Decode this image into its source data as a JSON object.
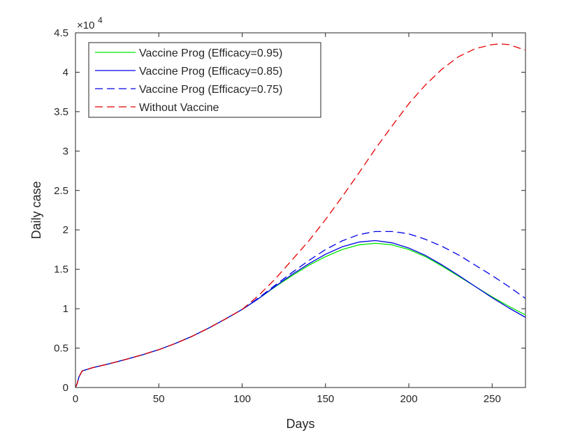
{
  "chart_data": {
    "type": "line",
    "xlabel": "Days",
    "ylabel": "Daily case",
    "y_exponent_label": "×10",
    "y_exponent_power": "4",
    "xlim": [
      0,
      270
    ],
    "ylim": [
      0,
      45000
    ],
    "x_ticks": [
      0,
      50,
      100,
      150,
      200,
      250
    ],
    "x_tick_labels": [
      "0",
      "50",
      "100",
      "150",
      "200",
      "250"
    ],
    "y_ticks": [
      0,
      5000,
      10000,
      15000,
      20000,
      25000,
      30000,
      35000,
      40000,
      45000
    ],
    "y_tick_labels": [
      "0",
      "0.5",
      "1",
      "1.5",
      "2",
      "2.5",
      "3",
      "3.5",
      "4",
      "4.5"
    ],
    "grid": false,
    "legend_position": "top-left",
    "series": [
      {
        "name": "Vaccine Prog (Efficacy=0.95)",
        "color": "#00e600",
        "dash": "solid",
        "x": [
          0,
          1,
          2,
          4,
          10,
          20,
          30,
          40,
          50,
          60,
          70,
          80,
          90,
          100,
          110,
          120,
          130,
          140,
          150,
          160,
          170,
          180,
          190,
          200,
          210,
          220,
          230,
          240,
          250,
          260,
          270
        ],
        "values": [
          0,
          500,
          1300,
          2100,
          2500,
          3000,
          3550,
          4150,
          4800,
          5600,
          6500,
          7550,
          8700,
          9900,
          11300,
          12800,
          14200,
          15500,
          16600,
          17500,
          18100,
          18300,
          18100,
          17500,
          16600,
          15400,
          14100,
          12800,
          11500,
          10300,
          9200
        ]
      },
      {
        "name": "Vaccine Prog (Efficacy=0.85)",
        "color": "#0000e6",
        "dash": "solid",
        "x": [
          0,
          1,
          2,
          4,
          10,
          20,
          30,
          40,
          50,
          60,
          70,
          80,
          90,
          100,
          110,
          120,
          130,
          140,
          150,
          160,
          170,
          180,
          190,
          200,
          210,
          220,
          230,
          240,
          250,
          260,
          270
        ],
        "values": [
          0,
          500,
          1300,
          2100,
          2500,
          3000,
          3550,
          4150,
          4800,
          5600,
          6500,
          7550,
          8700,
          9900,
          11300,
          12850,
          14350,
          15700,
          16900,
          17850,
          18450,
          18650,
          18350,
          17700,
          16750,
          15550,
          14200,
          12800,
          11400,
          10100,
          8900
        ]
      },
      {
        "name": "Vaccine Prog (Efficacy=0.75)",
        "color": "#0000e6",
        "dash": "dashed",
        "x": [
          0,
          1,
          2,
          4,
          10,
          20,
          30,
          40,
          50,
          60,
          70,
          80,
          90,
          100,
          110,
          120,
          130,
          140,
          150,
          160,
          170,
          180,
          190,
          200,
          210,
          220,
          230,
          240,
          250,
          260,
          270
        ],
        "values": [
          0,
          500,
          1300,
          2100,
          2500,
          3000,
          3550,
          4150,
          4800,
          5600,
          6500,
          7550,
          8700,
          9900,
          11400,
          13000,
          14600,
          16100,
          17500,
          18600,
          19400,
          19800,
          19800,
          19500,
          18800,
          17900,
          16800,
          15500,
          14200,
          12800,
          11300
        ]
      },
      {
        "name": "Without Vaccine",
        "color": "#e60000",
        "dash": "dashed",
        "x": [
          0,
          1,
          2,
          4,
          10,
          20,
          30,
          40,
          50,
          60,
          70,
          80,
          90,
          100,
          110,
          120,
          130,
          140,
          150,
          160,
          170,
          180,
          190,
          200,
          210,
          220,
          230,
          240,
          250,
          255,
          260,
          270
        ],
        "values": [
          0,
          500,
          1300,
          2100,
          2500,
          3000,
          3550,
          4150,
          4800,
          5600,
          6500,
          7550,
          8700,
          9900,
          11700,
          13800,
          16200,
          18600,
          21300,
          24200,
          27200,
          30300,
          33200,
          36000,
          38400,
          40400,
          42000,
          43000,
          43500,
          43600,
          43500,
          42800
        ]
      }
    ]
  }
}
